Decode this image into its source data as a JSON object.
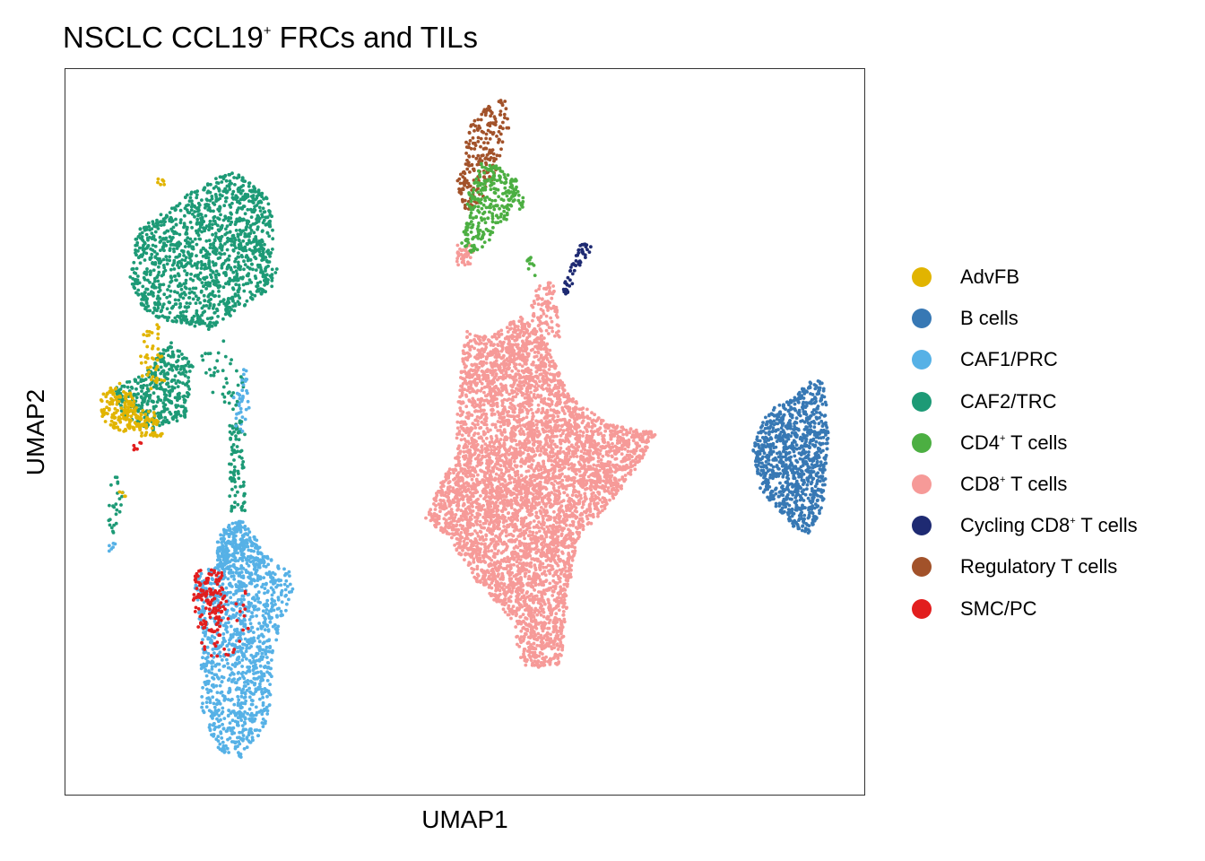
{
  "chart_data": {
    "type": "scatter",
    "title": {
      "text": "NSCLC CCL19",
      "sup": "+",
      "rest": " FRCs and TILs"
    },
    "xlabel": "UMAP1",
    "ylabel": "UMAP2",
    "axis_ticks": "none",
    "grid": false,
    "legend_position": "right",
    "x_range": [
      0,
      100
    ],
    "y_range": [
      0,
      100
    ],
    "series": [
      {
        "name": "AdvFB",
        "sup": "",
        "label_rest": "",
        "color": "#E1B400"
      },
      {
        "name": "B cells",
        "sup": "",
        "label_rest": "",
        "color": "#3778B4"
      },
      {
        "name": "CAF1/PRC",
        "sup": "",
        "label_rest": "",
        "color": "#56B1E6"
      },
      {
        "name": "CAF2/TRC",
        "sup": "",
        "label_rest": "",
        "color": "#1D9A76"
      },
      {
        "name": "CD4",
        "sup": "+",
        "label_rest": " T cells",
        "color": "#4CAF42"
      },
      {
        "name": "CD8",
        "sup": "+",
        "label_rest": " T cells",
        "color": "#F69A98"
      },
      {
        "name": "Cycling CD8",
        "sup": "+",
        "label_rest": " T cells",
        "color": "#1E2A72"
      },
      {
        "name": "Regulatory T cells",
        "sup": "",
        "label_rest": "",
        "color": "#A2522A"
      },
      {
        "name": "SMC/PC",
        "sup": "",
        "label_rest": "",
        "color": "#E21E1E"
      }
    ],
    "clusters": [
      {
        "series": "CAF2/TRC",
        "n": 1300,
        "shape": "poly",
        "poly": [
          [
            17,
            84
          ],
          [
            21,
            86
          ],
          [
            26,
            82
          ],
          [
            26,
            70
          ],
          [
            18,
            64
          ],
          [
            10,
            66
          ],
          [
            8,
            71
          ],
          [
            9,
            78
          ],
          [
            13,
            81
          ]
        ]
      },
      {
        "series": "CAF2/TRC",
        "n": 380,
        "shape": "poly",
        "poly": [
          [
            6,
            56
          ],
          [
            10,
            58
          ],
          [
            13,
            63
          ],
          [
            16,
            59
          ],
          [
            15,
            52
          ],
          [
            11,
            50
          ],
          [
            7,
            52
          ]
        ]
      },
      {
        "series": "CAF2/TRC",
        "n": 90,
        "shape": "poly",
        "poly": [
          [
            20.5,
            51
          ],
          [
            22.5,
            52
          ],
          [
            22.5,
            39
          ],
          [
            20.5,
            39
          ]
        ]
      },
      {
        "series": "CAF2/TRC",
        "n": 40,
        "shape": "poly",
        "poly": [
          [
            17,
            61
          ],
          [
            20,
            63
          ],
          [
            23,
            56
          ],
          [
            21,
            53
          ],
          [
            18,
            55
          ]
        ]
      },
      {
        "series": "CAF2/TRC",
        "n": 25,
        "shape": "poly",
        "poly": [
          [
            5.4,
            43
          ],
          [
            6.4,
            44
          ],
          [
            7.4,
            41
          ],
          [
            6.4,
            36
          ],
          [
            5.4,
            36
          ]
        ]
      },
      {
        "series": "CAF2/TRC",
        "n": 35,
        "shape": "poly",
        "poly": [
          [
            21,
            77
          ],
          [
            23,
            79
          ],
          [
            27,
            72
          ],
          [
            25,
            70
          ]
        ]
      },
      {
        "series": "AdvFB",
        "n": 150,
        "shape": "poly",
        "poly": [
          [
            4.5,
            55
          ],
          [
            6.5,
            57
          ],
          [
            8.5,
            55
          ],
          [
            9.5,
            50.5
          ],
          [
            7,
            50
          ],
          [
            5,
            51
          ],
          [
            4.3,
            53
          ]
        ]
      },
      {
        "series": "AdvFB",
        "n": 55,
        "shape": "poly",
        "poly": [
          [
            8.5,
            53
          ],
          [
            11,
            53
          ],
          [
            12.5,
            49.5
          ],
          [
            9.5,
            49
          ]
        ]
      },
      {
        "series": "AdvFB",
        "n": 45,
        "shape": "poly",
        "poly": [
          [
            9.5,
            64
          ],
          [
            12,
            65
          ],
          [
            12.5,
            57
          ],
          [
            10.5,
            55
          ],
          [
            9,
            59
          ]
        ]
      },
      {
        "series": "AdvFB",
        "n": 6,
        "shape": "poly",
        "poly": [
          [
            11.5,
            85
          ],
          [
            12.5,
            85.5
          ],
          [
            12.5,
            84
          ],
          [
            11.5,
            84
          ]
        ]
      },
      {
        "series": "AdvFB",
        "n": 4,
        "shape": "poly",
        "poly": [
          [
            6.5,
            41.5
          ],
          [
            7.5,
            42.5
          ],
          [
            7.5,
            41
          ],
          [
            6.5,
            41
          ]
        ]
      },
      {
        "series": "CAF1/PRC",
        "n": 1100,
        "shape": "poly",
        "poly": [
          [
            22,
            31
          ],
          [
            25,
            33
          ],
          [
            28,
            31
          ],
          [
            28.5,
            28
          ],
          [
            26,
            20
          ],
          [
            25.5,
            10
          ],
          [
            22,
            5
          ],
          [
            19,
            6
          ],
          [
            17,
            12
          ],
          [
            17,
            22
          ],
          [
            16,
            30
          ],
          [
            19,
            32
          ]
        ]
      },
      {
        "series": "CAF1/PRC",
        "n": 280,
        "shape": "poly",
        "poly": [
          [
            20,
            37
          ],
          [
            22,
            38
          ],
          [
            24,
            35
          ],
          [
            25,
            32
          ],
          [
            22,
            31
          ],
          [
            19,
            31
          ],
          [
            19,
            35
          ]
        ]
      },
      {
        "series": "CAF1/PRC",
        "n": 40,
        "shape": "poly",
        "poly": [
          [
            21,
            56
          ],
          [
            23,
            60
          ],
          [
            23,
            50
          ],
          [
            21,
            50
          ]
        ]
      },
      {
        "series": "CAF1/PRC",
        "n": 6,
        "shape": "poly",
        "poly": [
          [
            5.4,
            34.5
          ],
          [
            6.4,
            35
          ],
          [
            6.4,
            33.5
          ],
          [
            5.4,
            33.5
          ]
        ]
      },
      {
        "series": "SMC/PC",
        "n": 120,
        "shape": "poly",
        "poly": [
          [
            16,
            31
          ],
          [
            19.5,
            31
          ],
          [
            20,
            27
          ],
          [
            19,
            22
          ],
          [
            16.5,
            23
          ],
          [
            16,
            27
          ]
        ]
      },
      {
        "series": "SMC/PC",
        "n": 40,
        "shape": "poly",
        "poly": [
          [
            17,
            28
          ],
          [
            23,
            28
          ],
          [
            23,
            19
          ],
          [
            17,
            19
          ]
        ]
      },
      {
        "series": "SMC/PC",
        "n": 6,
        "shape": "poly",
        "poly": [
          [
            8.5,
            48.5
          ],
          [
            9.5,
            48.5
          ],
          [
            9.5,
            47.5
          ],
          [
            8.5,
            47.5
          ]
        ]
      },
      {
        "series": "Regulatory T cells",
        "n": 220,
        "shape": "poly",
        "poly": [
          [
            53,
            95
          ],
          [
            55,
            96
          ],
          [
            55.5,
            92
          ],
          [
            54,
            86
          ],
          [
            52,
            81
          ],
          [
            50,
            80.5
          ],
          [
            49,
            84
          ],
          [
            49.5,
            88
          ],
          [
            51,
            93
          ]
        ]
      },
      {
        "series": "CD4",
        "n": 280,
        "shape": "poly",
        "poly": [
          [
            52,
            87
          ],
          [
            55,
            86.5
          ],
          [
            57,
            84
          ],
          [
            57.5,
            81
          ],
          [
            55,
            79
          ],
          [
            53,
            76
          ],
          [
            51,
            74.5
          ],
          [
            49,
            75
          ],
          [
            50,
            79
          ],
          [
            50.5,
            83
          ]
        ]
      },
      {
        "series": "CD4",
        "n": 10,
        "shape": "poly",
        "poly": [
          [
            57,
            74
          ],
          [
            58.5,
            75
          ],
          [
            59,
            71.5
          ],
          [
            57.5,
            71
          ]
        ]
      },
      {
        "series": "CD8",
        "n": 5200,
        "shape": "poly",
        "poly": [
          [
            50,
            64
          ],
          [
            53,
            63
          ],
          [
            57,
            66
          ],
          [
            60,
            63
          ],
          [
            63,
            55
          ],
          [
            68,
            51
          ],
          [
            74,
            50
          ],
          [
            71,
            44
          ],
          [
            68,
            40
          ],
          [
            64,
            35
          ],
          [
            63,
            28
          ],
          [
            62,
            18
          ],
          [
            59,
            17.5
          ],
          [
            57,
            18
          ],
          [
            56,
            24
          ],
          [
            51,
            30
          ],
          [
            48,
            35.5
          ],
          [
            45,
            38
          ],
          [
            47,
            43
          ],
          [
            49,
            47
          ],
          [
            49,
            52
          ]
        ]
      },
      {
        "series": "CD8",
        "n": 100,
        "shape": "poly",
        "poly": [
          [
            59,
            70
          ],
          [
            61,
            71
          ],
          [
            62,
            63
          ],
          [
            60,
            63
          ],
          [
            58,
            66
          ]
        ]
      },
      {
        "series": "CD8",
        "n": 40,
        "shape": "poly",
        "poly": [
          [
            49,
            76
          ],
          [
            51,
            76
          ],
          [
            51,
            73
          ],
          [
            49,
            73
          ]
        ]
      },
      {
        "series": "Cycling CD8",
        "n": 55,
        "shape": "poly",
        "poly": [
          [
            64.5,
            76
          ],
          [
            66,
            76.5
          ],
          [
            65.5,
            74
          ],
          [
            64,
            72
          ],
          [
            63,
            69
          ],
          [
            62,
            69
          ],
          [
            63,
            72
          ]
        ]
      },
      {
        "series": "B cells",
        "n": 1000,
        "shape": "poly",
        "poly": [
          [
            93,
            57
          ],
          [
            95,
            57
          ],
          [
            95.5,
            50
          ],
          [
            95,
            40
          ],
          [
            93,
            36
          ],
          [
            91,
            37
          ],
          [
            87,
            42
          ],
          [
            86,
            48
          ],
          [
            88,
            53
          ],
          [
            91,
            54.5
          ]
        ]
      }
    ]
  }
}
